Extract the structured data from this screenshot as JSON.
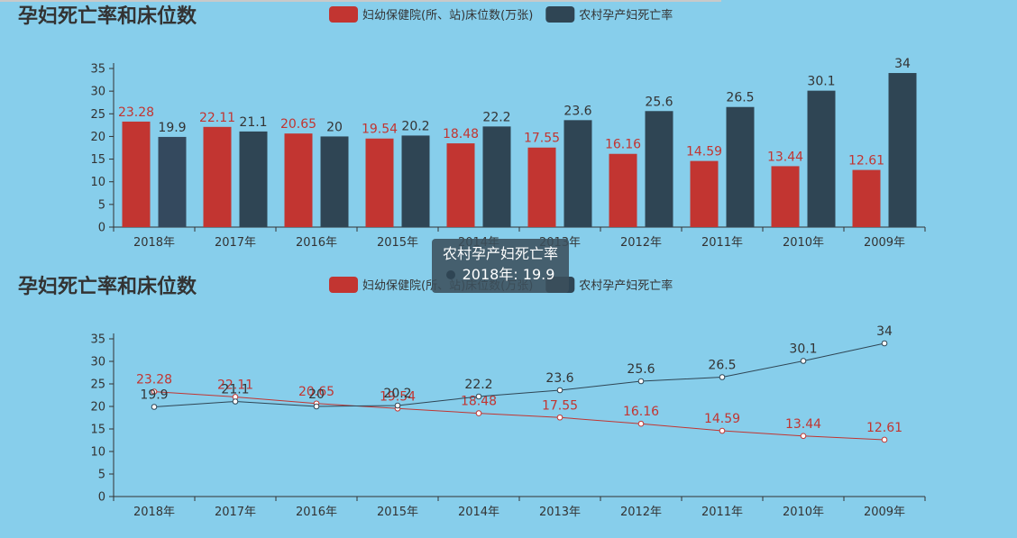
{
  "colors": {
    "background": "#87CEEB",
    "series_red": "#c23531",
    "series_dark": "#2f4554",
    "axis": "#333333",
    "tooltip_bg": "#3c505c"
  },
  "chart_data": [
    {
      "type": "bar",
      "title": "孕妇死亡率和床位数",
      "categories": [
        "2018年",
        "2017年",
        "2016年",
        "2015年",
        "2014年",
        "2013年",
        "2012年",
        "2011年",
        "2010年",
        "2009年"
      ],
      "series": [
        {
          "name": "妇幼保健院(所、站)床位数(万张)",
          "values": [
            23.28,
            22.11,
            20.65,
            19.54,
            18.48,
            17.55,
            16.16,
            14.59,
            13.44,
            12.61
          ]
        },
        {
          "name": "农村孕产妇死亡率",
          "values": [
            19.9,
            21.1,
            20,
            20.2,
            22.2,
            23.6,
            25.6,
            26.5,
            30.1,
            34
          ]
        }
      ],
      "ylim": [
        0,
        35
      ],
      "yticks": [
        0,
        5,
        10,
        15,
        20,
        25,
        30,
        35
      ],
      "legend_position": "top",
      "grid": false
    },
    {
      "type": "line",
      "title": "孕妇死亡率和床位数",
      "categories": [
        "2018年",
        "2017年",
        "2016年",
        "2015年",
        "2014年",
        "2013年",
        "2012年",
        "2011年",
        "2010年",
        "2009年"
      ],
      "series": [
        {
          "name": "妇幼保健院(所、站)床位数(万张)",
          "values": [
            23.28,
            22.11,
            20.65,
            19.54,
            18.48,
            17.55,
            16.16,
            14.59,
            13.44,
            12.61
          ]
        },
        {
          "name": "农村孕产妇死亡率",
          "values": [
            19.9,
            21.1,
            20,
            20.2,
            22.2,
            23.6,
            25.6,
            26.5,
            30.1,
            34
          ]
        }
      ],
      "ylim": [
        0,
        35
      ],
      "yticks": [
        0,
        5,
        10,
        15,
        20,
        25,
        30,
        35
      ],
      "legend_position": "top",
      "grid": false
    }
  ],
  "tooltip": {
    "title": "农村孕产妇死亡率",
    "text": "2018年: 19.9"
  }
}
